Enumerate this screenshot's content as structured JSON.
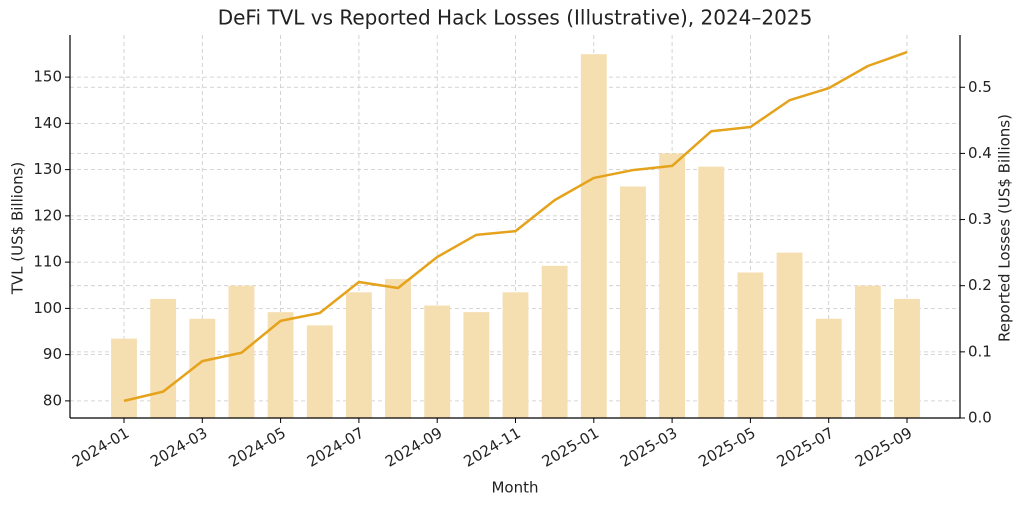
{
  "chart_data": {
    "type": "combo",
    "title": "DeFi TVL vs Reported Hack Losses (Illustrative), 2024–2025",
    "x_label": "Month",
    "y_label": "TVL (US$ Billions)",
    "y2_label": "Reported Losses (US$ Billions)",
    "categories": [
      "2024-01",
      null,
      "2024-03",
      null,
      "2024-05",
      null,
      "2024-07",
      null,
      "2024-09",
      null,
      "2024-11",
      null,
      "2025-01",
      null,
      "2025-03",
      null,
      "2025-05",
      null,
      "2025-07",
      null,
      "2025-09"
    ],
    "series": [
      {
        "name": "Reported Losses",
        "type": "bar",
        "axis": "y2",
        "color": "#f5deb0",
        "values": [
          0.12,
          0.18,
          0.15,
          0.2,
          0.16,
          0.14,
          0.19,
          0.21,
          0.17,
          0.16,
          0.19,
          0.23,
          0.55,
          0.35,
          0.4,
          0.38,
          0.22,
          0.25,
          0.15,
          0.2,
          0.18
        ]
      },
      {
        "name": "TVL",
        "type": "line",
        "color": "#e5a21b",
        "values": [
          80,
          82,
          88.6,
          90.4,
          97.3,
          99,
          105.7,
          104.4,
          111.1,
          115.9,
          116.7,
          123.4,
          128.2,
          129.9,
          130.8,
          138.3,
          139.2,
          145,
          147.6,
          152.4,
          155.4
        ]
      }
    ],
    "ylim": [
      76.3,
      159.1
    ],
    "yticks": [
      80,
      90,
      100,
      110,
      120,
      130,
      140,
      150
    ],
    "y2lim": [
      0,
      0.579
    ],
    "y2ticks": [
      {
        "value": 0,
        "label": "0.0"
      },
      0.1,
      0.2,
      0.3,
      0.4,
      0.5
    ],
    "grid": true
  }
}
